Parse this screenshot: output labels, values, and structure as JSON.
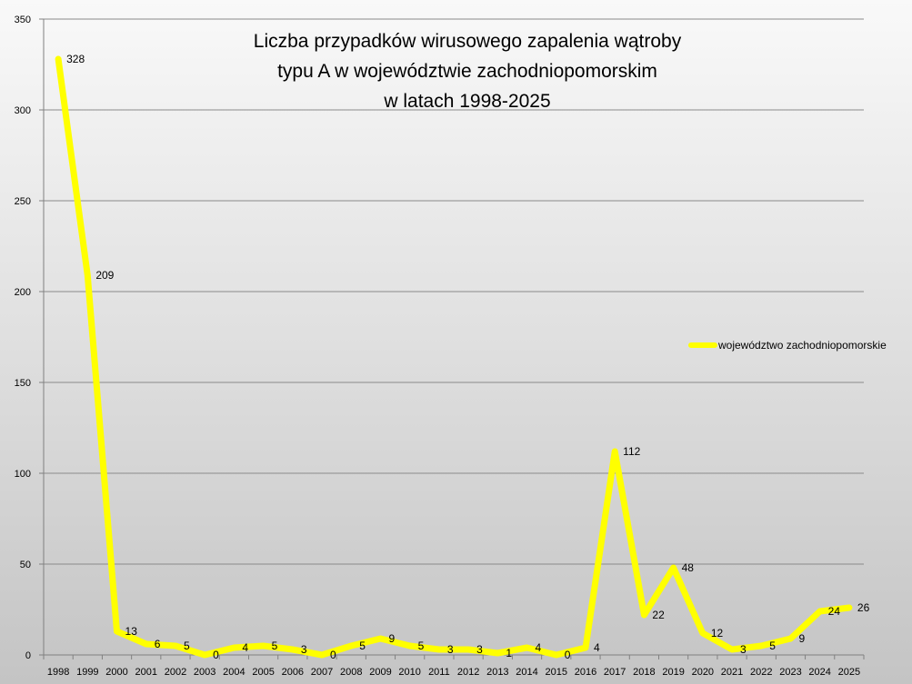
{
  "chart_data": {
    "type": "line",
    "title": [
      "Liczba przypadków wirusowego zapalenia wątroby",
      "typu A w województwie zachodniopomorskim",
      "w latach 1998-2025"
    ],
    "categories": [
      "1998",
      "1999",
      "2000",
      "2001",
      "2002",
      "2003",
      "2004",
      "2005",
      "2006",
      "2007",
      "2008",
      "2009",
      "2010",
      "2011",
      "2012",
      "2013",
      "2014",
      "2015",
      "2016",
      "2017",
      "2018",
      "2019",
      "2020",
      "2021",
      "2022",
      "2023",
      "2024",
      "2025"
    ],
    "series": [
      {
        "name": "województwo zachodniopomorskie",
        "color": "#ffff00",
        "values": [
          328,
          209,
          13,
          6,
          5,
          0,
          4,
          5,
          3,
          0,
          5,
          9,
          5,
          3,
          3,
          1,
          4,
          0,
          4,
          112,
          22,
          48,
          12,
          3,
          5,
          9,
          24,
          26
        ]
      }
    ],
    "ylim": [
      0,
      350
    ],
    "yticks": [
      0,
      50,
      100,
      150,
      200,
      250,
      300,
      350
    ],
    "grid": true,
    "legend_position": "right"
  }
}
